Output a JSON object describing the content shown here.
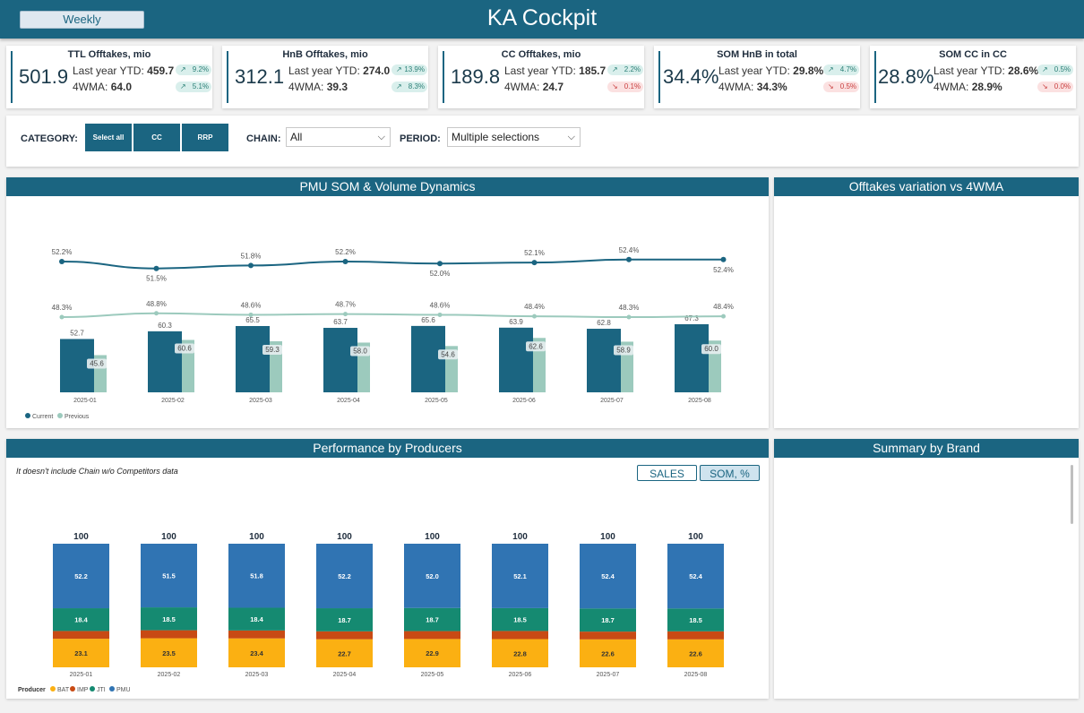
{
  "header": {
    "title": "KA Cockpit",
    "weekly_label": "Weekly"
  },
  "kpis": [
    {
      "title": "TTL Offtakes, mio",
      "value": "501.9",
      "ly_label": "Last year YTD:",
      "ly_value": "459.7",
      "wma_label": "4WMA:",
      "wma_value": "64.0",
      "ly_delta": "9.2%",
      "ly_dir": "up",
      "wma_delta": "5.1%",
      "wma_dir": "up"
    },
    {
      "title": "HnB Offtakes, mio",
      "value": "312.1",
      "ly_label": "Last year YTD:",
      "ly_value": "274.0",
      "wma_label": "4WMA:",
      "wma_value": "39.3",
      "ly_delta": "13.9%",
      "ly_dir": "up",
      "wma_delta": "8.3%",
      "wma_dir": "up"
    },
    {
      "title": "CC Offtakes, mio",
      "value": "189.8",
      "ly_label": "Last year YTD:",
      "ly_value": "185.7",
      "wma_label": "4WMA:",
      "wma_value": "24.7",
      "ly_delta": "2.2%",
      "ly_dir": "up",
      "wma_delta": "0.1%",
      "wma_dir": "down"
    },
    {
      "title": "SOM HnB in total",
      "value": "34.4%",
      "ly_label": "Last year YTD:",
      "ly_value": "29.8%",
      "wma_label": "4WMA:",
      "wma_value": "34.3%",
      "ly_delta": "4.7%",
      "ly_dir": "up",
      "wma_delta": "0.5%",
      "wma_dir": "down"
    },
    {
      "title": "SOM CC in CC",
      "value": "28.8%",
      "ly_label": "Last year YTD:",
      "ly_value": "28.6%",
      "wma_label": "4WMA:",
      "wma_value": "28.9%",
      "ly_delta": "0.5%",
      "ly_dir": "up",
      "wma_delta": "0.0%",
      "wma_dir": "down"
    }
  ],
  "filters": {
    "category_label": "CATEGORY:",
    "category_buttons": [
      "Select all",
      "CC",
      "RRP"
    ],
    "chain_label": "CHAIN:",
    "chain_value": "All",
    "period_label": "PERIOD:",
    "period_value": "Multiple selections"
  },
  "panels": {
    "som_title": "PMU SOM & Volume Dynamics",
    "offtakes_title": "Offtakes variation vs 4WMA",
    "producers_title": "Performance by Producers",
    "brand_title": "Summary by Brand",
    "producers_note": "It doesn't include Chain w/o Competitors data",
    "toggle_sales": "SALES",
    "toggle_som": "SOM, %"
  },
  "colors": {
    "primary": "#1b6581",
    "previous": "#9ccabd",
    "bat": "#fbb012",
    "imp": "#c84a14",
    "jti": "#158a71",
    "pmu": "#3074b3"
  },
  "chart_data": [
    {
      "type": "bar",
      "title": "PMU SOM & Volume Dynamics",
      "categories": [
        "2025-01",
        "2025-02",
        "2025-03",
        "2025-04",
        "2025-05",
        "2025-06",
        "2025-07",
        "2025-08"
      ],
      "series": [
        {
          "name": "Current",
          "type": "bar",
          "values": [
            52.7,
            60.3,
            65.5,
            63.7,
            65.6,
            63.9,
            62.8,
            67.3
          ]
        },
        {
          "name": "Previous",
          "type": "bar",
          "values": [
            45.6,
            60.6,
            59.3,
            58.0,
            54.6,
            62.6,
            58.9,
            60.0
          ]
        },
        {
          "type": "line",
          "values": [
            52.2,
            51.5,
            51.8,
            52.2,
            52.0,
            52.1,
            52.4,
            52.4
          ],
          "labels": [
            "52.2%",
            "51.5%",
            "51.8%",
            "52.2%",
            "52.0%",
            "52.1%",
            "52.4%",
            "52.4%"
          ]
        },
        {
          "type": "line",
          "values": [
            48.3,
            48.8,
            48.6,
            48.7,
            48.6,
            48.4,
            48.3,
            48.4
          ],
          "labels": [
            "48.3%",
            "48.8%",
            "48.6%",
            "48.7%",
            "48.6%",
            "48.4%",
            "48.3%",
            "48.4%"
          ]
        }
      ],
      "legend": "bottom-left"
    },
    {
      "type": "bar",
      "stacked": true,
      "title": "Performance by Producers",
      "legend_title": "Producer",
      "categories": [
        "2025-01",
        "2025-02",
        "2025-03",
        "2025-04",
        "2025-05",
        "2025-06",
        "2025-07",
        "2025-08"
      ],
      "totals": [
        100,
        100,
        100,
        100,
        100,
        100,
        100,
        100
      ],
      "series": [
        {
          "name": "BAT",
          "values": [
            23.1,
            23.5,
            23.4,
            22.7,
            22.9,
            22.8,
            22.6,
            22.6
          ],
          "labels": [
            "23.1",
            "23.5",
            "23.4",
            "22.7",
            "22.9",
            "22.8",
            "22.6",
            "22.6"
          ]
        },
        {
          "name": "IMP",
          "values": [
            6.3,
            6.5,
            6.4,
            6.4,
            6.4,
            6.6,
            6.3,
            6.5
          ],
          "labels": [
            "",
            "",
            "",
            "",
            "",
            "",
            "",
            ""
          ]
        },
        {
          "name": "JTI",
          "values": [
            18.4,
            18.5,
            18.4,
            18.7,
            18.7,
            18.5,
            18.7,
            18.5
          ],
          "labels": [
            "18.4",
            "18.5",
            "18.4",
            "18.7",
            "18.7",
            "18.5",
            "18.7",
            "18.5"
          ]
        },
        {
          "name": "PMU",
          "values": [
            52.2,
            51.5,
            51.8,
            52.2,
            52.0,
            52.1,
            52.4,
            52.4
          ],
          "labels": [
            "52.2",
            "51.5",
            "51.8",
            "52.2",
            "52.0",
            "52.1",
            "52.4",
            "52.4"
          ]
        }
      ],
      "legend": "bottom-left"
    }
  ]
}
